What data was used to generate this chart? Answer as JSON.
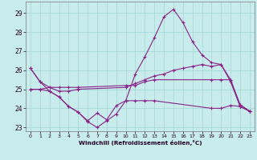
{
  "xlabel": "Windchill (Refroidissement éolien,°C)",
  "xlim": [
    -0.5,
    23.5
  ],
  "ylim": [
    22.8,
    29.6
  ],
  "yticks": [
    23,
    24,
    25,
    26,
    27,
    28,
    29
  ],
  "xticks": [
    0,
    1,
    2,
    3,
    4,
    5,
    6,
    7,
    8,
    9,
    10,
    11,
    12,
    13,
    14,
    15,
    16,
    17,
    18,
    19,
    20,
    21,
    22,
    23
  ],
  "background_color": "#c8ecec",
  "grid_color": "#aad8d8",
  "line_color": "#882288",
  "lines": [
    {
      "x": [
        0,
        1,
        2,
        3,
        4,
        5,
        6,
        7,
        8,
        9,
        10,
        11,
        12,
        13,
        14,
        15,
        16,
        17,
        18,
        19,
        20,
        21,
        22,
        23
      ],
      "y": [
        26.1,
        25.4,
        24.9,
        24.6,
        24.1,
        23.8,
        23.3,
        23.0,
        23.35,
        23.7,
        24.4,
        25.8,
        26.7,
        27.7,
        28.8,
        29.2,
        28.5,
        27.5,
        26.8,
        26.4,
        26.3,
        25.4,
        24.1,
        23.85
      ]
    },
    {
      "x": [
        0,
        1,
        2,
        3,
        4,
        5,
        10,
        11,
        12,
        13,
        14,
        15,
        16,
        17,
        18,
        19,
        20,
        21,
        22,
        23
      ],
      "y": [
        26.1,
        25.4,
        25.1,
        24.9,
        24.9,
        25.0,
        25.1,
        25.3,
        25.5,
        25.7,
        25.8,
        26.0,
        26.1,
        26.2,
        26.3,
        26.2,
        26.3,
        25.5,
        24.1,
        23.85
      ]
    },
    {
      "x": [
        0,
        1,
        2,
        3,
        4,
        5,
        10,
        11,
        12,
        13,
        19,
        20,
        21,
        22,
        23
      ],
      "y": [
        25.0,
        25.0,
        25.1,
        25.1,
        25.1,
        25.1,
        25.2,
        25.2,
        25.4,
        25.5,
        25.5,
        25.5,
        25.5,
        24.2,
        23.85
      ]
    },
    {
      "x": [
        0,
        1,
        2,
        3,
        4,
        5,
        6,
        7,
        8,
        9,
        10,
        11,
        12,
        13,
        19,
        20,
        21,
        22,
        23
      ],
      "y": [
        25.0,
        25.0,
        24.9,
        24.6,
        24.1,
        23.8,
        23.35,
        23.75,
        23.4,
        24.15,
        24.4,
        24.4,
        24.4,
        24.4,
        24.0,
        24.0,
        24.15,
        24.1,
        23.85
      ]
    }
  ]
}
